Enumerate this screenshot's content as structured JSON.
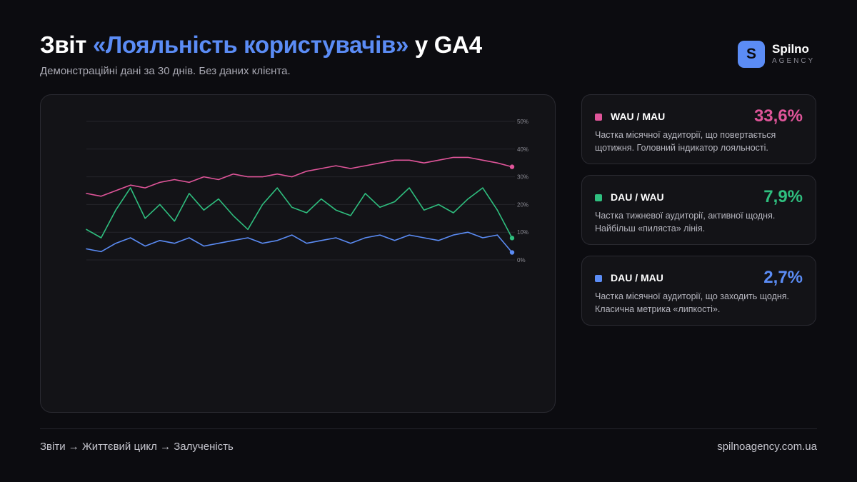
{
  "header": {
    "title_prefix": "Звіт ",
    "title_accent": "«Лояльність користувачів»",
    "title_suffix": " у GA4",
    "subtitle": "Демонстраційні дані за 30 днів. Без даних клієнта."
  },
  "brand": {
    "mark": "S",
    "name": "Spilno",
    "tagline": "AGENCY"
  },
  "colors": {
    "pink": "#e0559a",
    "green": "#2fbf7f",
    "blue": "#5b8cf5"
  },
  "chart_data": {
    "type": "line",
    "title": "",
    "xlabel": "",
    "ylabel": "",
    "ylim": [
      0,
      50
    ],
    "y_ticks": [
      "0%",
      "10%",
      "20%",
      "30%",
      "40%",
      "50%"
    ],
    "y_axis_position": "right",
    "grid": true,
    "legend": "none",
    "x": [
      1,
      2,
      3,
      4,
      5,
      6,
      7,
      8,
      9,
      10,
      11,
      12,
      13,
      14,
      15,
      16,
      17,
      18,
      19,
      20,
      21,
      22,
      23,
      24,
      25,
      26,
      27,
      28,
      29,
      30
    ],
    "series": [
      {
        "color": "#e0559a",
        "values": [
          24,
          23,
          25,
          27,
          26,
          28,
          29,
          28,
          30,
          29,
          31,
          30,
          30,
          31,
          30,
          32,
          33,
          34,
          33,
          34,
          35,
          36,
          36,
          35,
          36,
          37,
          37,
          36,
          35,
          33.6
        ]
      },
      {
        "color": "#2fbf7f",
        "values": [
          11,
          8,
          18,
          26,
          15,
          20,
          14,
          24,
          18,
          22,
          16,
          11,
          20,
          26,
          19,
          17,
          22,
          18,
          16,
          24,
          19,
          21,
          26,
          18,
          20,
          17,
          22,
          26,
          18,
          7.9
        ]
      },
      {
        "color": "#5b8cf5",
        "values": [
          4,
          3,
          6,
          8,
          5,
          7,
          6,
          8,
          5,
          6,
          7,
          8,
          6,
          7,
          9,
          6,
          7,
          8,
          6,
          8,
          9,
          7,
          9,
          8,
          7,
          9,
          10,
          8,
          9,
          2.7
        ]
      }
    ]
  },
  "cards": [
    {
      "label": "WAU / MAU",
      "value": "33,6%",
      "color": "#e0559a",
      "description": "Частка місячної аудиторії, що повертається щотижня. Головний індикатор лояльності."
    },
    {
      "label": "DAU / WAU",
      "value": "7,9%",
      "color": "#2fbf7f",
      "description": "Частка тижневої аудиторії, активної щодня. Найбільш «пиляста» лінія."
    },
    {
      "label": "DAU / MAU",
      "value": "2,7%",
      "color": "#5b8cf5",
      "description": "Частка місячної аудиторії, що заходить щодня. Класична метрика «липкості»."
    }
  ],
  "footer": {
    "breadcrumb": "Звіти → Життєвий цикл → Залученість",
    "site": "spilnoagency.com.ua"
  }
}
